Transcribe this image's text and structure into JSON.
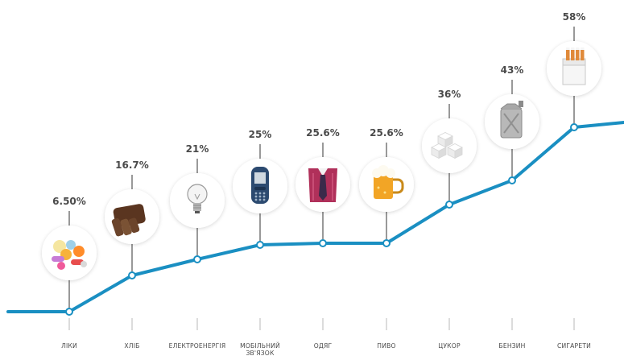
{
  "colors": {
    "line": "#1a8fc2",
    "marker_fill": "#ffffff",
    "label_text": "#4a4a4a",
    "tick": "#b8b8b8",
    "stem": "#333333"
  },
  "chart_data": {
    "type": "line",
    "title": "",
    "xlabel": "",
    "ylabel": "",
    "ylim": [
      0,
      70
    ],
    "grid": false,
    "legend": "none",
    "categories": [
      "ЛІКИ",
      "ХЛІБ",
      "ЕЛЕКТРОЕНЕРГІЯ",
      "МОБІЛЬНИЙ ЗВ'ЯЗОК",
      "ОДЯГ",
      "ПИВО",
      "ЦУКОР",
      "БЕНЗИН",
      "СИГАРЕТИ"
    ],
    "values": [
      6.5,
      16.7,
      21,
      25,
      25.6,
      25.6,
      36,
      43,
      58
    ],
    "value_labels": [
      "6.50%",
      "16.7%",
      "21%",
      "25%",
      "25.6%",
      "25.6%",
      "36%",
      "43%",
      "58%"
    ],
    "icons": [
      "pills-icon",
      "bread-icon",
      "lightbulb-icon",
      "mobile-phone-icon",
      "shirt-icon",
      "beer-mug-icon",
      "sugar-cubes-icon",
      "fuel-canister-icon",
      "cigarette-pack-icon"
    ]
  }
}
